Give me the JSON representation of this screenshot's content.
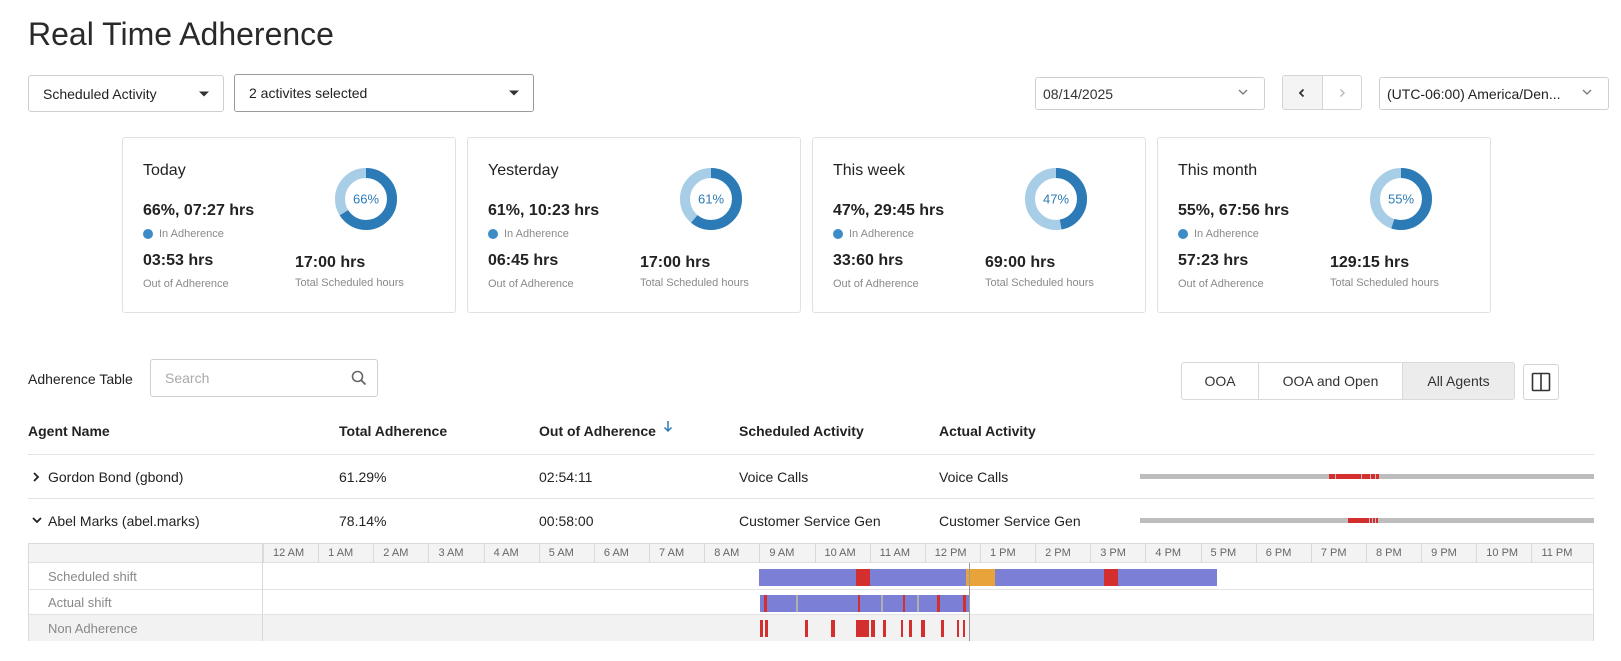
{
  "page": {
    "title": "Real Time Adherence"
  },
  "filters": {
    "scheduled_activity": "Scheduled Activity",
    "activities": "2 activites selected",
    "date": "08/14/2025",
    "timezone": "(UTC-06:00) America/Den..."
  },
  "cards": [
    {
      "title": "Today",
      "main": "66%, 07:27 hrs",
      "percent_label": "66%",
      "percent": 66,
      "in_label": "In Adherence",
      "out_value": "03:53 hrs",
      "out_label": "Out of Adherence",
      "total_value": "17:00 hrs",
      "total_label": "Total Scheduled hours"
    },
    {
      "title": "Yesterday",
      "main": "61%, 10:23 hrs",
      "percent_label": "61%",
      "percent": 61,
      "in_label": "In Adherence",
      "out_value": "06:45 hrs",
      "out_label": "Out of Adherence",
      "total_value": "17:00 hrs",
      "total_label": "Total Scheduled hours"
    },
    {
      "title": "This week",
      "main": "47%, 29:45 hrs",
      "percent_label": "47%",
      "percent": 47,
      "in_label": "In Adherence",
      "out_value": "33:60 hrs",
      "out_label": "Out of Adherence",
      "total_value": "69:00 hrs",
      "total_label": "Total Scheduled hours"
    },
    {
      "title": "This month",
      "main": "55%, 67:56 hrs",
      "percent_label": "55%",
      "percent": 55,
      "in_label": "In Adherence",
      "out_value": "57:23 hrs",
      "out_label": "Out of Adherence",
      "total_value": "129:15 hrs",
      "total_label": "Total Scheduled hours"
    }
  ],
  "colors": {
    "donut_fill": "#2c7bb6",
    "donut_track": "#a8cde6",
    "scheduled": "#7b7fd6",
    "break": "#e8a33a",
    "violation": "#d32f2f",
    "idle": "#b0b0b0"
  },
  "table": {
    "label": "Adherence Table",
    "search_placeholder": "Search",
    "view_buttons": [
      "OOA",
      "OOA and Open",
      "All Agents"
    ],
    "headers": {
      "agent": "Agent Name",
      "total": "Total Adherence",
      "out": "Out of Adherence",
      "scheduled": "Scheduled Activity",
      "actual": "Actual Activity"
    },
    "rows": [
      {
        "agent": "Gordon Bond (gbond)",
        "total": "61.29%",
        "out": "02:54:11",
        "scheduled": "Voice Calls",
        "actual": "Voice Calls",
        "expanded": false
      },
      {
        "agent": "Abel Marks (abel.marks)",
        "total": "78.14%",
        "out": "00:58:00",
        "scheduled": "Customer Service Gen",
        "actual": "Customer Service Gen",
        "expanded": true
      }
    ]
  },
  "timeline": {
    "hours": [
      "12 AM",
      "1 AM",
      "2 AM",
      "3 AM",
      "4 AM",
      "5 AM",
      "6 AM",
      "7 AM",
      "8 AM",
      "9 AM",
      "10 AM",
      "11 AM",
      "12 PM",
      "1 PM",
      "2 PM",
      "3 PM",
      "4 PM",
      "5 PM",
      "6 PM",
      "7 PM",
      "8 PM",
      "9 PM",
      "10 PM",
      "11 PM"
    ],
    "row_labels": {
      "scheduled": "Scheduled shift",
      "actual": "Actual shift",
      "non_adherence": "Non Adherence"
    },
    "scheduled_segments": [
      {
        "start": 9.0,
        "end": 10.75,
        "type": "scheduled"
      },
      {
        "start": 10.75,
        "end": 11.0,
        "type": "violation"
      },
      {
        "start": 11.0,
        "end": 12.75,
        "type": "scheduled"
      },
      {
        "start": 12.75,
        "end": 13.27,
        "type": "break"
      },
      {
        "start": 13.27,
        "end": 15.25,
        "type": "scheduled"
      },
      {
        "start": 15.25,
        "end": 15.5,
        "type": "violation"
      },
      {
        "start": 15.5,
        "end": 17.3,
        "type": "scheduled"
      }
    ],
    "actual_segments": [
      {
        "start": 9.02,
        "end": 12.8,
        "type": "scheduled"
      },
      {
        "start": 9.08,
        "end": 9.14,
        "type": "violation"
      },
      {
        "start": 9.66,
        "end": 9.7,
        "type": "idle"
      },
      {
        "start": 10.78,
        "end": 10.82,
        "type": "violation"
      },
      {
        "start": 11.2,
        "end": 11.25,
        "type": "idle"
      },
      {
        "start": 11.6,
        "end": 11.63,
        "type": "violation"
      },
      {
        "start": 11.86,
        "end": 11.9,
        "type": "idle"
      },
      {
        "start": 12.22,
        "end": 12.27,
        "type": "violation"
      },
      {
        "start": 12.7,
        "end": 12.74,
        "type": "violation"
      }
    ],
    "non_adherence_marks": [
      {
        "start": 9.02,
        "end": 9.07
      },
      {
        "start": 9.11,
        "end": 9.15
      },
      {
        "start": 9.82,
        "end": 9.88
      },
      {
        "start": 10.3,
        "end": 10.38
      },
      {
        "start": 10.76,
        "end": 10.98
      },
      {
        "start": 11.02,
        "end": 11.1
      },
      {
        "start": 11.24,
        "end": 11.3
      },
      {
        "start": 11.56,
        "end": 11.61
      },
      {
        "start": 11.72,
        "end": 11.76
      },
      {
        "start": 11.94,
        "end": 12.01
      },
      {
        "start": 12.3,
        "end": 12.35
      },
      {
        "start": 12.58,
        "end": 12.62
      },
      {
        "start": 12.7,
        "end": 12.73
      }
    ],
    "now_hour": 12.8,
    "sparklines": [
      [
        10.0,
        10.1,
        10.2,
        10.35,
        10.45,
        10.55,
        10.7,
        10.8,
        10.9,
        11.0,
        11.1,
        11.2,
        11.3,
        11.4,
        11.5,
        11.6,
        11.75,
        11.85,
        11.95,
        12.05,
        12.2,
        12.3,
        12.45,
        12.55
      ],
      [
        11.0,
        11.1,
        11.2,
        11.3,
        11.4,
        11.5,
        11.6,
        11.7,
        11.8,
        11.9,
        12.0,
        12.15,
        12.3,
        12.45
      ]
    ]
  }
}
